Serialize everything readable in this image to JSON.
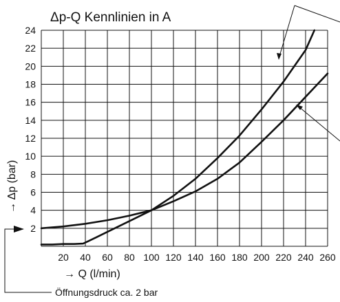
{
  "chart_data": {
    "type": "line",
    "title": "Δp-Q Kennlinien in A",
    "xlabel": "→ Q (l/min)",
    "ylabel": "→ Δp (bar)",
    "annotation": "Öffnungsdruck ca. 2 bar",
    "xlim": [
      0,
      260
    ],
    "ylim": [
      0,
      24
    ],
    "grid": true,
    "x_ticks": [
      "20",
      "40",
      "60",
      "80",
      "100",
      "120",
      "140",
      "160",
      "180",
      "200",
      "220",
      "240",
      "260"
    ],
    "y_ticks": [
      "2",
      "4",
      "6",
      "8",
      "10",
      "12",
      "14",
      "16",
      "18",
      "20",
      "22",
      "24"
    ],
    "series": [
      {
        "x": [
          0,
          10,
          20,
          30,
          38,
          50,
          60,
          80,
          100,
          120,
          140,
          160,
          180,
          200,
          220,
          240,
          248
        ],
        "values": [
          0.2,
          0.2,
          0.25,
          0.25,
          0.3,
          1.0,
          1.6,
          2.8,
          4.0,
          5.6,
          7.5,
          9.8,
          12.3,
          15.2,
          18.3,
          21.8,
          24.0
        ]
      },
      {
        "x": [
          0,
          20,
          40,
          60,
          80,
          100,
          120,
          140,
          160,
          180,
          200,
          220,
          240,
          260
        ],
        "values": [
          2.0,
          2.2,
          2.5,
          2.9,
          3.4,
          4.0,
          5.0,
          6.1,
          7.5,
          9.3,
          11.6,
          14.0,
          16.6,
          19.2
        ]
      }
    ]
  }
}
